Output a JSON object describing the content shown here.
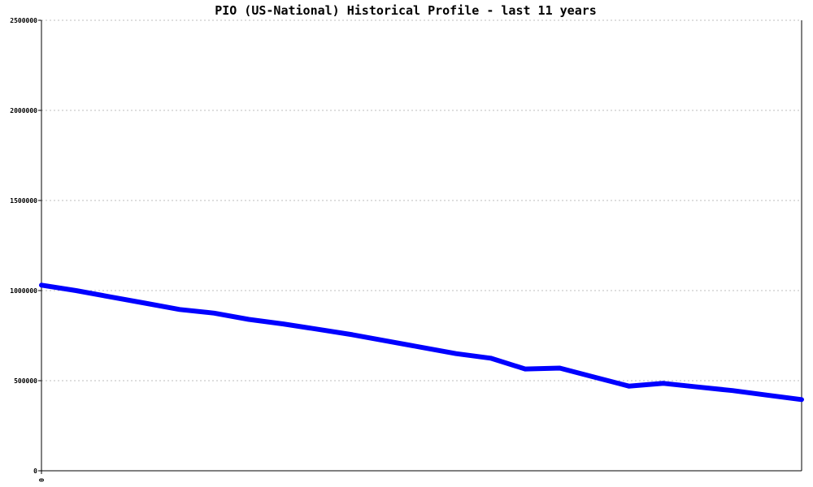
{
  "chart_data": {
    "type": "line",
    "title": "PIO (US-National) Historical Profile - last 11 years",
    "xlabel": "",
    "ylabel": "",
    "ylim": [
      0,
      2500000
    ],
    "y_ticks": [
      0,
      500000,
      1000000,
      1500000,
      2000000,
      2500000
    ],
    "y_tick_labels": [
      "0",
      "500000",
      "1000000",
      "1500000",
      "2000000",
      "2500000"
    ],
    "x_tick_labels": [
      "0"
    ],
    "grid": true,
    "legend": "none",
    "colors": {
      "series": "#0000ff",
      "grid": "#bdbdbd",
      "axis": "#000000",
      "background": "#ffffff"
    },
    "series": [
      {
        "values": [
          1030000,
          1000000,
          965000,
          930000,
          895000,
          875000,
          840000,
          815000,
          785000,
          755000,
          720000,
          685000,
          650000,
          625000,
          565000,
          570000,
          520000,
          470000,
          485000,
          465000,
          445000,
          420000,
          395000
        ]
      }
    ]
  }
}
